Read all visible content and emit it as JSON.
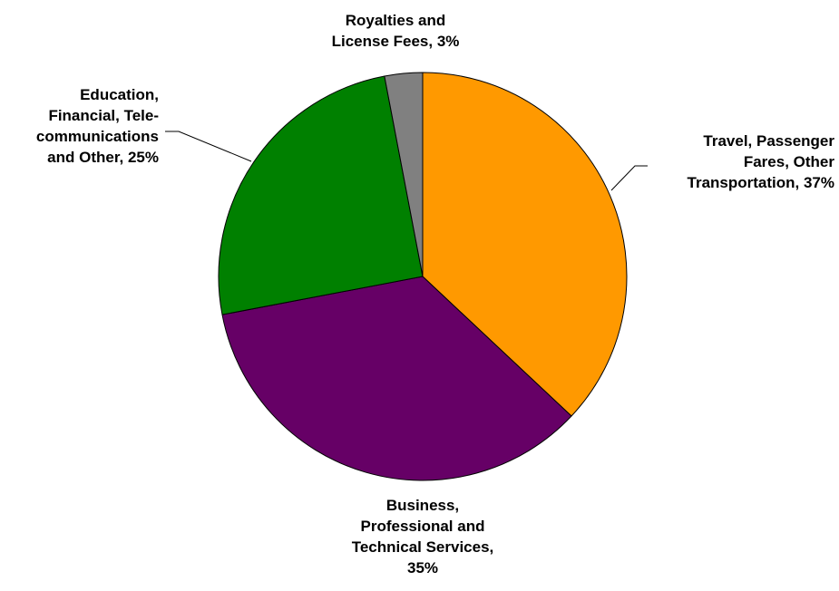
{
  "chart_data": {
    "type": "pie",
    "title": "",
    "start_angle_deg": 0,
    "direction": "clockwise",
    "slices": [
      {
        "name": "Travel, Passenger Fares, Other Transportation",
        "value": 37,
        "color": "#FF9900",
        "label_lines": [
          "Travel, Passenger",
          "Fares, Other",
          "Transportation, 37%"
        ]
      },
      {
        "name": "Business, Professional and Technical Services",
        "value": 35,
        "color": "#660066",
        "label_lines": [
          "Business,",
          "Professional and",
          "Technical Services,",
          "35%"
        ]
      },
      {
        "name": "Education, Financial, Telecommunications and Other",
        "value": 25,
        "color": "#008000",
        "label_lines": [
          "Education,",
          "Financial, Tele-",
          "communications",
          "and Other, 25%"
        ]
      },
      {
        "name": "Royalties and License Fees",
        "value": 3,
        "color": "#808080",
        "label_lines": [
          "Royalties and",
          "License Fees, 3%"
        ]
      }
    ],
    "legend": "none"
  }
}
